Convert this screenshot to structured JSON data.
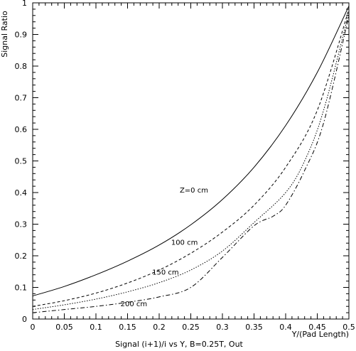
{
  "chart_data": {
    "type": "line",
    "title": "",
    "xlabel": "Y/(Pad Length)",
    "ylabel": "Signal Ratio",
    "caption": "Signal (i+1)/i vs Y, B=0.25T, Out",
    "xlim": [
      0,
      0.5
    ],
    "ylim": [
      0,
      1
    ],
    "x_ticks": [
      0,
      0.05,
      0.1,
      0.15,
      0.2,
      0.25,
      0.3,
      0.35,
      0.4,
      0.45,
      0.5
    ],
    "x_tick_labels": [
      "0",
      "0.05",
      "0.1",
      "0.15",
      "0.2",
      "0.25",
      "0.3",
      "0.35",
      "0.4",
      "0.45",
      "0.5"
    ],
    "y_ticks": [
      0,
      0.1,
      0.2,
      0.3,
      0.4,
      0.5,
      0.6,
      0.7,
      0.8,
      0.9,
      1
    ],
    "y_tick_labels": [
      "0",
      "0.1",
      "0.2",
      "0.3",
      "0.4",
      "0.5",
      "0.6",
      "0.7",
      "0.8",
      "0.9",
      "1"
    ],
    "grid": false,
    "series": [
      {
        "name": "Z=0 cm",
        "style": "solid",
        "x": [
          0,
          0.05,
          0.1,
          0.15,
          0.2,
          0.25,
          0.3,
          0.35,
          0.4,
          0.45,
          0.5
        ],
        "y": [
          0.073,
          0.103,
          0.14,
          0.183,
          0.234,
          0.298,
          0.378,
          0.48,
          0.612,
          0.78,
          0.99
        ]
      },
      {
        "name": "100 cm",
        "style": "dashed",
        "x": [
          0,
          0.05,
          0.1,
          0.15,
          0.2,
          0.25,
          0.3,
          0.35,
          0.4,
          0.45,
          0.5
        ],
        "y": [
          0.04,
          0.058,
          0.082,
          0.114,
          0.155,
          0.208,
          0.275,
          0.36,
          0.48,
          0.66,
          0.98
        ]
      },
      {
        "name": "150 cm",
        "style": "dotted",
        "x": [
          0,
          0.05,
          0.1,
          0.15,
          0.2,
          0.25,
          0.3,
          0.35,
          0.4,
          0.43,
          0.46,
          0.5
        ],
        "y": [
          0.03,
          0.045,
          0.063,
          0.086,
          0.115,
          0.155,
          0.215,
          0.305,
          0.4,
          0.5,
          0.66,
          0.97
        ]
      },
      {
        "name": "200 cm",
        "style": "dashdot",
        "x": [
          0,
          0.05,
          0.1,
          0.15,
          0.2,
          0.25,
          0.3,
          0.35,
          0.38,
          0.4,
          0.43,
          0.46,
          0.5
        ],
        "y": [
          0.02,
          0.03,
          0.04,
          0.053,
          0.07,
          0.1,
          0.195,
          0.295,
          0.325,
          0.36,
          0.47,
          0.62,
          0.96
        ]
      }
    ],
    "series_labels": [
      {
        "series": "Z=0 cm",
        "text": "Z=0 cm",
        "at_x": 0.255,
        "at_y": 0.4
      },
      {
        "series": "100 cm",
        "text": "100 cm",
        "at_x": 0.24,
        "at_y": 0.235
      },
      {
        "series": "150 cm",
        "text": "150 cm",
        "at_x": 0.21,
        "at_y": 0.14
      },
      {
        "series": "200 cm",
        "text": "200 cm",
        "at_x": 0.16,
        "at_y": 0.04
      }
    ]
  }
}
